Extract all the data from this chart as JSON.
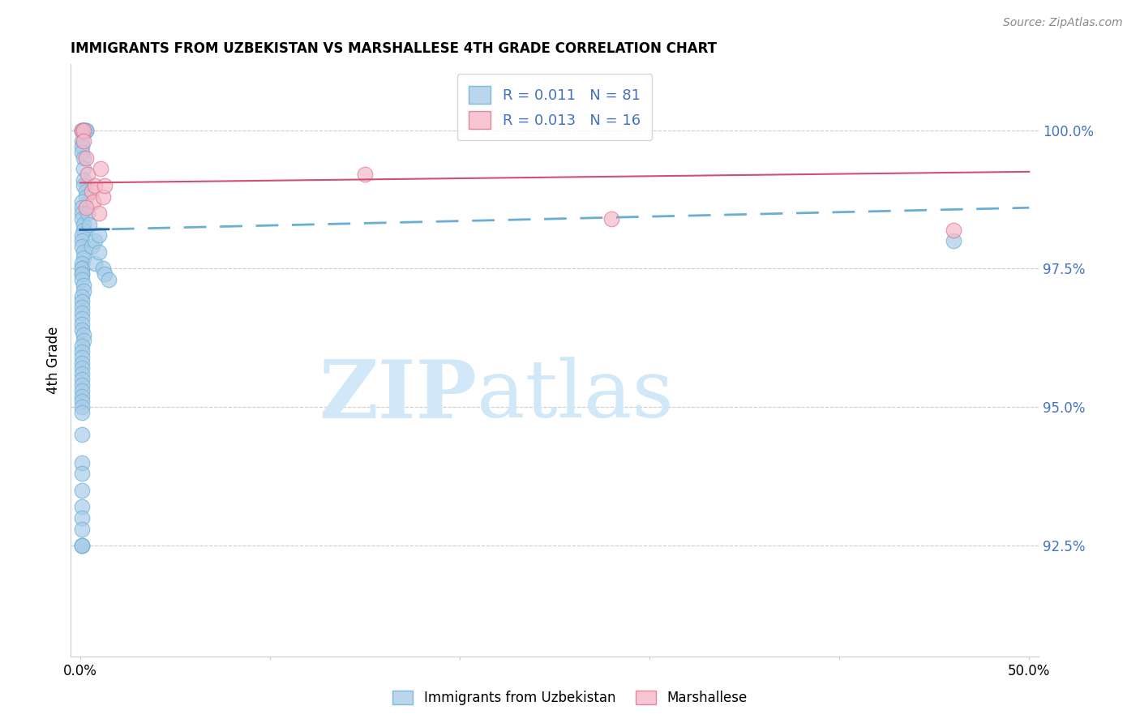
{
  "title": "IMMIGRANTS FROM UZBEKISTAN VS MARSHALLESE 4TH GRADE CORRELATION CHART",
  "source": "Source: ZipAtlas.com",
  "ylabel_label": "4th Grade",
  "xlim": [
    -0.005,
    0.505
  ],
  "ylim": [
    90.5,
    101.2
  ],
  "legend_r1": "R = 0.011",
  "legend_n1": "N = 81",
  "legend_r2": "R = 0.013",
  "legend_n2": "N = 16",
  "blue_color": "#a8cce8",
  "blue_edge_color": "#6aaed6",
  "pink_color": "#f4b8c8",
  "pink_edge_color": "#e07090",
  "trend_blue_solid": "#2060a0",
  "trend_blue_dash": "#6aaed6",
  "trend_pink_solid": "#d05070",
  "watermark_zip": "ZIP",
  "watermark_atlas": "atlas",
  "watermark_color": "#d0e8f8",
  "blue_scatter_x": [
    0.001,
    0.001,
    0.001,
    0.002,
    0.002,
    0.002,
    0.002,
    0.003,
    0.003,
    0.003,
    0.001,
    0.001,
    0.001,
    0.002,
    0.002,
    0.002,
    0.002,
    0.003,
    0.003,
    0.001,
    0.001,
    0.001,
    0.001,
    0.002,
    0.002,
    0.001,
    0.001,
    0.001,
    0.002,
    0.002,
    0.001,
    0.001,
    0.001,
    0.001,
    0.001,
    0.001,
    0.002,
    0.002,
    0.001,
    0.001,
    0.001,
    0.001,
    0.001,
    0.001,
    0.001,
    0.002,
    0.002,
    0.001,
    0.001,
    0.001,
    0.001,
    0.001,
    0.001,
    0.001,
    0.001,
    0.001,
    0.001,
    0.001,
    0.001,
    0.001,
    0.001,
    0.001,
    0.001,
    0.001,
    0.001,
    0.001,
    0.001,
    0.001,
    0.001,
    0.001,
    0.004,
    0.005,
    0.006,
    0.008,
    0.008,
    0.01,
    0.01,
    0.012,
    0.013,
    0.015,
    0.46
  ],
  "blue_scatter_y": [
    100.0,
    100.0,
    100.0,
    100.0,
    100.0,
    100.0,
    100.0,
    100.0,
    100.0,
    100.0,
    99.8,
    99.7,
    99.6,
    99.5,
    99.3,
    99.1,
    99.0,
    98.9,
    98.8,
    98.7,
    98.6,
    98.5,
    98.4,
    98.3,
    98.2,
    98.1,
    98.0,
    97.9,
    97.8,
    97.7,
    97.6,
    97.5,
    97.5,
    97.4,
    97.4,
    97.3,
    97.2,
    97.1,
    97.0,
    96.9,
    96.8,
    96.7,
    96.6,
    96.5,
    96.4,
    96.3,
    96.2,
    96.1,
    96.0,
    95.9,
    95.8,
    95.7,
    95.6,
    95.5,
    95.4,
    95.3,
    95.2,
    95.1,
    95.0,
    94.9,
    94.5,
    94.0,
    93.8,
    93.5,
    93.2,
    93.0,
    92.8,
    92.5,
    92.5,
    92.5,
    98.5,
    98.3,
    97.9,
    98.0,
    97.6,
    97.8,
    98.1,
    97.5,
    97.4,
    97.3,
    98.0
  ],
  "pink_scatter_x": [
    0.001,
    0.002,
    0.002,
    0.003,
    0.004,
    0.006,
    0.007,
    0.008,
    0.01,
    0.011,
    0.012,
    0.013,
    0.15,
    0.28,
    0.46,
    0.003
  ],
  "pink_scatter_y": [
    100.0,
    100.0,
    99.8,
    99.5,
    99.2,
    98.9,
    98.7,
    99.0,
    98.5,
    99.3,
    98.8,
    99.0,
    99.2,
    98.4,
    98.2,
    98.6
  ],
  "grid_yticks": [
    92.5,
    95.0,
    97.5,
    100.0
  ],
  "right_ytick_labels": [
    "92.5%",
    "95.0%",
    "97.5%",
    "100.0%"
  ],
  "right_label_color": "#4472c4"
}
